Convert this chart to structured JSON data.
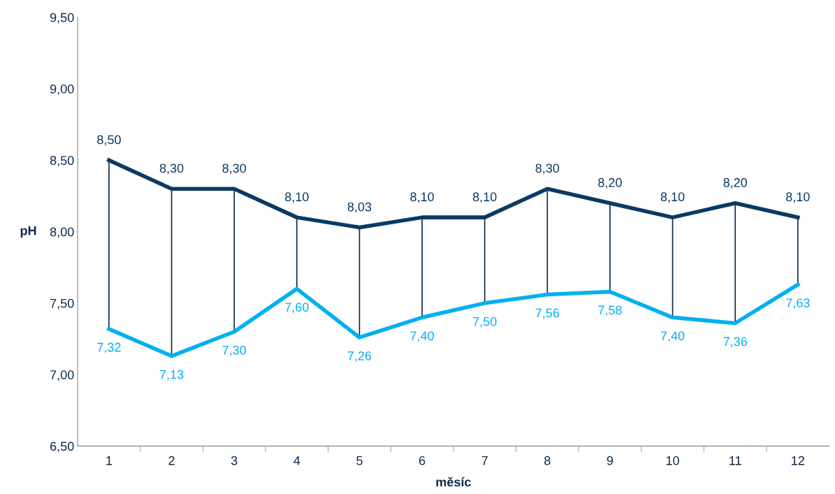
{
  "chart_data": {
    "type": "line",
    "xlabel": "měsíc",
    "ylabel": "pH",
    "categories": [
      "1",
      "2",
      "3",
      "4",
      "5",
      "6",
      "7",
      "8",
      "9",
      "10",
      "11",
      "12"
    ],
    "ylim": [
      6.5,
      9.5
    ],
    "yticks": [
      {
        "value": 6.5,
        "label": "6,50"
      },
      {
        "value": 7.0,
        "label": "7,00"
      },
      {
        "value": 7.5,
        "label": "7,50"
      },
      {
        "value": 8.0,
        "label": "8,00"
      },
      {
        "value": 8.5,
        "label": "8,50"
      },
      {
        "value": 9.0,
        "label": "9,00"
      },
      {
        "value": 9.5,
        "label": "9,50"
      }
    ],
    "grid": false,
    "legend": false,
    "marker": "none",
    "line_style": "solid",
    "series": [
      {
        "color": "#0b3a63",
        "values": [
          8.5,
          8.3,
          8.3,
          8.1,
          8.03,
          8.1,
          8.1,
          8.3,
          8.2,
          8.1,
          8.2,
          8.1
        ],
        "value_labels": [
          "8,50",
          "8,30",
          "8,30",
          "8,10",
          "8,03",
          "8,10",
          "8,10",
          "8,30",
          "8,20",
          "8,10",
          "8,20",
          "8,10"
        ]
      },
      {
        "color": "#00b0f0",
        "values": [
          7.32,
          7.13,
          7.3,
          7.6,
          7.26,
          7.4,
          7.5,
          7.56,
          7.58,
          7.4,
          7.36,
          7.63
        ],
        "value_labels": [
          "7,32",
          "7,13",
          "7,30",
          "7,60",
          "7,26",
          "7,40",
          "7,50",
          "7,56",
          "7,58",
          "7,40",
          "7,36",
          "7,63"
        ],
        "errors": [
          [
            7.32,
            8.5
          ],
          [
            7.13,
            8.3
          ],
          [
            7.3,
            8.3
          ],
          [
            7.6,
            8.1
          ],
          [
            7.26,
            8.03
          ],
          [
            7.4,
            8.1
          ],
          [
            7.5,
            8.1
          ],
          [
            7.56,
            8.3
          ],
          [
            7.58,
            8.2
          ],
          [
            7.4,
            8.1
          ],
          [
            7.36,
            8.2
          ],
          [
            7.63,
            8.1
          ]
        ]
      }
    ]
  }
}
